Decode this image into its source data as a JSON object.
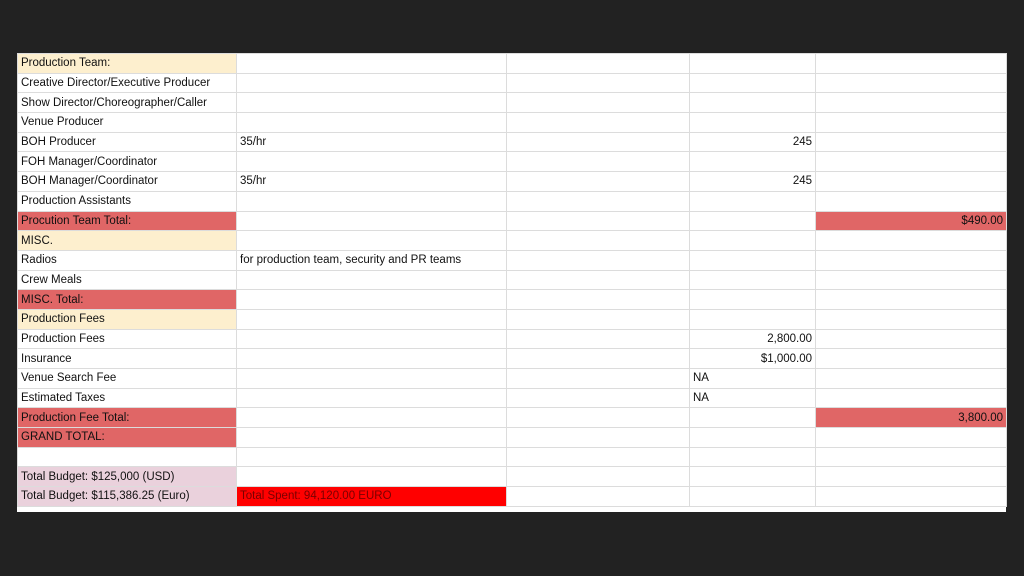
{
  "colors": {
    "background": "#222222",
    "section_header": "#fdefce",
    "total_row": "#e06666",
    "budget_row": "#ead1dc",
    "spent_highlight": "#ff0000"
  },
  "rows": [
    {
      "label": "Production Team:",
      "style": "cream",
      "b": "",
      "c": "",
      "d": "",
      "e": ""
    },
    {
      "label": "Creative Director/Executive Producer",
      "style": "",
      "b": "",
      "c": "",
      "d": "",
      "e": ""
    },
    {
      "label": "Show Director/Choreographer/Caller",
      "style": "",
      "b": "",
      "c": "",
      "d": "",
      "e": ""
    },
    {
      "label": "Venue Producer",
      "style": "",
      "b": "",
      "c": "",
      "d": "",
      "e": ""
    },
    {
      "label": "BOH Producer",
      "style": "",
      "b": "35/hr",
      "c": "",
      "d": "245",
      "e": ""
    },
    {
      "label": "FOH Manager/Coordinator",
      "style": "",
      "b": "",
      "c": "",
      "d": "",
      "e": ""
    },
    {
      "label": "BOH Manager/Coordinator",
      "style": "",
      "b": "35/hr",
      "c": "",
      "d": "245",
      "e": ""
    },
    {
      "label": "Production Assistants",
      "style": "",
      "b": "",
      "c": "",
      "d": "",
      "e": ""
    },
    {
      "label": "Procution Team Total:",
      "style": "red",
      "b": "",
      "c": "",
      "d": "",
      "e": "$490.00"
    },
    {
      "label": "MISC.",
      "style": "cream",
      "b": "",
      "c": "",
      "d": "",
      "e": ""
    },
    {
      "label": "Radios",
      "style": "",
      "b": "for production team, security and PR teams",
      "c": "",
      "d": "",
      "e": ""
    },
    {
      "label": "Crew Meals",
      "style": "",
      "b": "",
      "c": "",
      "d": "",
      "e": ""
    },
    {
      "label": "MISC. Total:",
      "style": "redlabel",
      "b": "",
      "c": "",
      "d": "",
      "e": ""
    },
    {
      "label": "Production Fees",
      "style": "cream",
      "b": "",
      "c": "",
      "d": "",
      "e": ""
    },
    {
      "label": "Production Fees",
      "style": "",
      "b": "",
      "c": "",
      "d": "2,800.00",
      "e": ""
    },
    {
      "label": "Insurance",
      "style": "",
      "b": "",
      "c": "",
      "d": "$1,000.00",
      "e": ""
    },
    {
      "label": "Venue Search Fee",
      "style": "",
      "b": "",
      "c": "",
      "d": "NA",
      "dAlign": "left",
      "e": ""
    },
    {
      "label": "Estimated Taxes",
      "style": "",
      "b": "",
      "c": "",
      "d": "NA",
      "dAlign": "left",
      "e": ""
    },
    {
      "label": "Production Fee Total:",
      "style": "red",
      "b": "",
      "c": "",
      "d": "",
      "e": "3,800.00"
    },
    {
      "label": "GRAND TOTAL:",
      "style": "redlabel",
      "b": "",
      "c": "",
      "d": "",
      "e": ""
    },
    {
      "label": "",
      "style": "",
      "b": "",
      "c": "",
      "d": "",
      "e": ""
    },
    {
      "label": "Total Budget: $125,000 (USD)",
      "style": "pink",
      "b": "",
      "c": "",
      "d": "",
      "e": ""
    },
    {
      "label": "Total Budget: $115,386.25 (Euro)",
      "style": "pink",
      "b": "Total Spent: 94,120.00 EURO",
      "bStyle": "bright",
      "c": "",
      "d": "",
      "e": ""
    }
  ]
}
